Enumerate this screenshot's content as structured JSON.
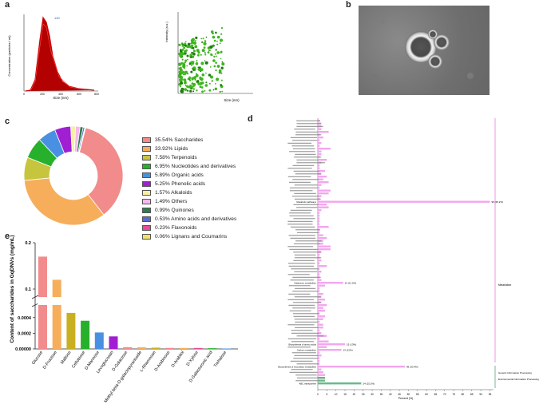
{
  "panels": {
    "a": "a",
    "b": "b",
    "c": "c",
    "d": "d",
    "e": "e"
  },
  "panel_a": {
    "left": {
      "ylabel": "Concentration (particles / ml)",
      "xlabel": "Size (nm)",
      "peak_label": "130",
      "x_ticks": [
        "0",
        "200",
        "400",
        "600",
        "800"
      ]
    },
    "right": {
      "ylabel": "Intensity (a.u.)",
      "xlabel": "Size (nm)",
      "x_ticks": [
        "0",
        "100",
        "200",
        "300",
        "400",
        "500",
        "600"
      ],
      "y_ticks": [
        "0",
        "1",
        "2",
        "3",
        "4",
        "5",
        "6",
        "7"
      ]
    }
  },
  "panel_b": {
    "caption": "TEM image"
  },
  "chart_data": [
    {
      "type": "pie",
      "title": "",
      "categories": [
        "Saccharides",
        "Lipids",
        "Terpenoids",
        "Nucleotides and derivatives",
        "Organic acids",
        "Phenolic acids",
        "Alkaloids",
        "Others",
        "Quinones",
        "Amino acids and derivatives",
        "Flavonoids",
        "Lignans and Coumarins"
      ],
      "values": [
        35.54,
        33.92,
        7.58,
        6.95,
        5.89,
        5.25,
        1.57,
        1.49,
        0.99,
        0.53,
        0.23,
        0.06
      ],
      "legend_labels": [
        "35.54% Saccharides",
        "33.92% Lipids",
        "7.58% Terpenoids",
        "6.95% Nucleotides and derivatives",
        "5.89% Organic acids",
        "5.25% Phenolic acids",
        "1.57% Alkaloids",
        "1.49% Others",
        "0.99% Quinones",
        "0.53% Amino acids and derivatives",
        "0.23% Flavonoids",
        "0.06% Lignans and Coumarins"
      ],
      "colors": [
        "#f28b8b",
        "#f6ae5a",
        "#c6c53d",
        "#27b02c",
        "#4a90e2",
        "#a11fd3",
        "#f7f0a3",
        "#f9b6f0",
        "#2e7d4f",
        "#5b6bd0",
        "#e84b9a",
        "#f2e070"
      ]
    },
    {
      "type": "bar",
      "title": "",
      "ylabel": "Content of saccharides in GqDNVs (mg/mL)",
      "categories": [
        "Glucose",
        "D-Fructose",
        "Maltose",
        "Cellobiose",
        "D-Mannose",
        "Levoglucosan",
        "D-Galactose",
        "Methyl beta-D-galactopyranoside",
        "L-Rhamnose",
        "D-Arabinose",
        "D-Arabitol",
        "D-Xylose",
        "D-Galacturonic acid",
        "Trehalose"
      ],
      "values": [
        0.17,
        0.12,
        0.00046,
        0.00036,
        0.00021,
        0.00016,
        2.2e-05,
        2e-05,
        1.6e-05,
        1.3e-05,
        1.2e-05,
        1.2e-05,
        9e-06,
        5e-06
      ],
      "colors": [
        "#f28b8b",
        "#f6ae5a",
        "#c9b021",
        "#27b02c",
        "#4a90e2",
        "#a11fd3",
        "#f28b8b",
        "#f6ae5a",
        "#c9b021",
        "#f28b8b",
        "#f6ae5a",
        "#e84b9a",
        "#27b02c",
        "#4a90e2"
      ],
      "y_ticks": [
        "0.00000",
        "0.0002",
        "0.0004",
        "0.1",
        "0.2"
      ]
    },
    {
      "type": "bar",
      "orientation": "horizontal",
      "title": "",
      "xlabel": "Percent (%)",
      "x_ticks": [
        "0",
        "5",
        "10",
        "15",
        "20",
        "25",
        "30",
        "35",
        "40",
        "45",
        "50",
        "55",
        "60",
        "65",
        "70",
        "75",
        "80",
        "85",
        "90",
        "95"
      ],
      "categories": [
        "Metabolic pathways",
        "Biosynthesis of secondary metabolites",
        "ABC transporters",
        "Biosynthesis of amino acids",
        "Carbon metabolism",
        "Galactose metabolism"
      ],
      "values": [
        95,
        48,
        24,
        15,
        13,
        14
      ],
      "value_labels": [
        "95 (35.2%)",
        "48 (30.4%)",
        "24 (15.2%)",
        "15 (13%)",
        "13 (12%)",
        "14 (11.2%)"
      ],
      "groups": [
        "Metabolism",
        "Genetic Information Processing",
        "Environmental Information Processing"
      ]
    }
  ]
}
